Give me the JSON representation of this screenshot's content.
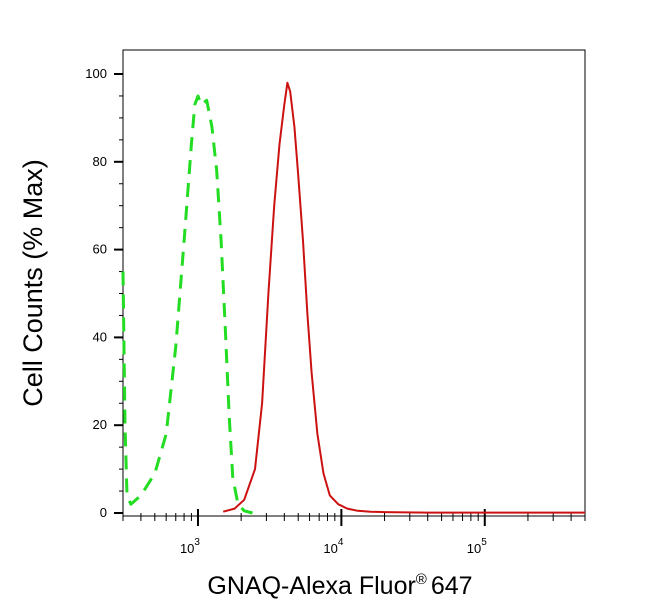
{
  "chart_data": {
    "type": "line",
    "title": "",
    "xlabel": "GNAQ-Alexa Fluor",
    "xlabel_mark": "®",
    "xlabel_suffix": "647",
    "ylabel": "Cell Counts (% Max)",
    "x_scale": "log",
    "xlim": [
      300,
      500000
    ],
    "ylim": [
      0,
      100
    ],
    "x_ticks": [
      {
        "value": 1000,
        "base": "10",
        "exp": "3"
      },
      {
        "value": 10000,
        "base": "10",
        "exp": "4"
      },
      {
        "value": 100000,
        "base": "10",
        "exp": "5"
      }
    ],
    "y_ticks": [
      0,
      20,
      40,
      60,
      80,
      100
    ],
    "grid": false,
    "series": [
      {
        "color": "#22dd22",
        "style": "dashed",
        "x": [
          300,
          310,
          320,
          340,
          400,
          500,
          600,
          700,
          800,
          900,
          950,
          1000,
          1050,
          1150,
          1250,
          1350,
          1450,
          1550,
          1650,
          1750,
          1900,
          2100,
          2400
        ],
        "y": [
          55,
          20,
          4,
          2,
          4,
          9,
          18,
          38,
          62,
          84,
          93,
          95,
          93,
          94,
          88,
          78,
          62,
          42,
          22,
          8,
          2,
          0.5,
          0
        ]
      },
      {
        "color": "#cc1111",
        "style": "solid",
        "x": [
          1500,
          1800,
          2100,
          2500,
          2800,
          3100,
          3400,
          3700,
          4000,
          4200,
          4400,
          4700,
          5000,
          5400,
          5800,
          6200,
          6800,
          7500,
          8300,
          9500,
          11000,
          13000,
          16000,
          20000,
          40000,
          100000,
          500000
        ],
        "y": [
          0.3,
          1,
          3,
          10,
          25,
          50,
          70,
          84,
          93,
          98,
          96,
          88,
          77,
          62,
          45,
          32,
          18,
          9,
          4,
          2,
          1,
          0.5,
          0.3,
          0.2,
          0.1,
          0.1,
          0.1
        ]
      }
    ]
  }
}
